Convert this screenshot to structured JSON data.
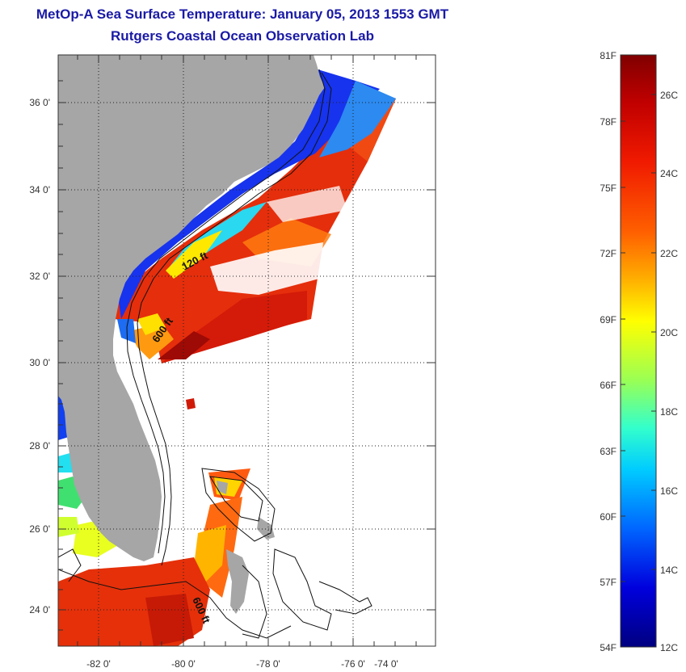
{
  "title": {
    "line1": "MetOp-A Sea Surface Temperature:  January 05, 2013 1553 GMT",
    "line2": "Rutgers Coastal Ocean Observation Lab"
  },
  "map": {
    "lat_ticks": [
      "36 0'",
      "34 0'",
      "32 0'",
      "30 0'",
      "28 0'",
      "26 0'",
      "24 0'"
    ],
    "lon_ticks": [
      "-82 0'",
      "-80 0'",
      "-78 0'",
      "-76 0'",
      "-74 0'"
    ],
    "contour_labels": [
      "120 ft",
      "600 ft",
      "600 ft"
    ],
    "colors": {
      "land": "#a6a6a6",
      "ocean": "#ffffff"
    }
  },
  "colorbar": {
    "fahrenheit": [
      "81F",
      "78F",
      "75F",
      "72F",
      "69F",
      "66F",
      "63F",
      "60F",
      "57F",
      "54F"
    ],
    "celsius": [
      "26C",
      "24C",
      "22C",
      "20C",
      "18C",
      "16C",
      "14C",
      "12C"
    ],
    "colors": [
      "#800000",
      "#d00000",
      "#ff3300",
      "#ff8800",
      "#ffdd00",
      "#ccff33",
      "#66ff99",
      "#00ffee",
      "#00aaff",
      "#0044ff",
      "#0000cc",
      "#000080"
    ]
  }
}
